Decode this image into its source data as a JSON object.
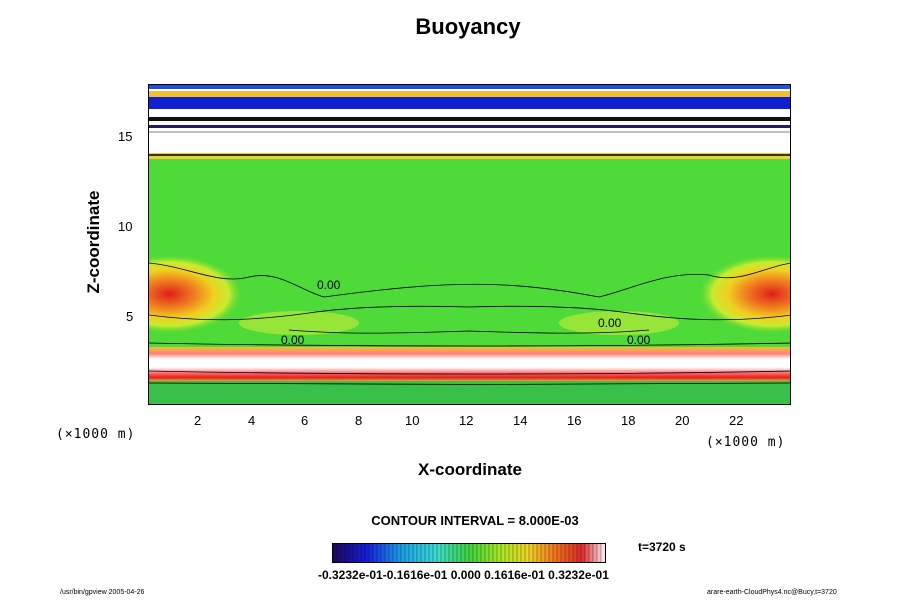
{
  "chart_data": {
    "type": "heatmap",
    "title": "Buoyancy",
    "xlabel": "X-coordinate",
    "ylabel": "Z-coordinate",
    "x_scale_label": "(×1000 m)",
    "y_scale_label": "(×1000 m)",
    "xlim": [
      0,
      24
    ],
    "ylim": [
      0,
      18
    ],
    "x_ticks": [
      "2",
      "4",
      "6",
      "8",
      "10",
      "12",
      "14",
      "16",
      "18",
      "20",
      "22"
    ],
    "y_ticks": [
      "5",
      "10",
      "15"
    ],
    "contour_labels": [
      "0.00",
      "0.00",
      "0.00",
      "0.00"
    ],
    "contour_interval": "CONTOUR INTERVAL = 8.000E-03",
    "time": "t=3720 s",
    "colorbar_labels": "-0.3232e-01-0.1616e-01 0.000 0.1616e-01 0.3232e-01",
    "colorbar_range": [
      -0.03232,
      0.03232
    ]
  },
  "footer": {
    "left": "/usr/bin/gpview 2005-04-26",
    "right": "arare-earth-CloudPhys4.nc@Bucy,t=3720"
  }
}
